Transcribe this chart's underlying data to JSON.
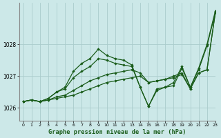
{
  "background_color": "#cce8e8",
  "grid_color": "#aacccc",
  "line_color": "#1a5c1a",
  "title": "Graphe pression niveau de la mer (hPa)",
  "xlim": [
    -0.5,
    23
  ],
  "ylim": [
    1025.6,
    1029.3
  ],
  "yticks": [
    1026,
    1027,
    1028
  ],
  "xticks": [
    0,
    1,
    2,
    3,
    4,
    5,
    6,
    7,
    8,
    9,
    10,
    11,
    12,
    13,
    14,
    15,
    16,
    17,
    18,
    19,
    20,
    21,
    22,
    23
  ],
  "series": [
    {
      "x": [
        0,
        1,
        2,
        3,
        4,
        5,
        6,
        7,
        8,
        9,
        10,
        11,
        12,
        13,
        14,
        15,
        16,
        17,
        18,
        19,
        20,
        21,
        22,
        23
      ],
      "y": [
        1026.2,
        1026.25,
        1026.2,
        1026.25,
        1026.3,
        1026.35,
        1026.4,
        1026.5,
        1026.6,
        1026.7,
        1026.8,
        1026.85,
        1026.9,
        1026.95,
        1027.0,
        1026.8,
        1026.85,
        1026.9,
        1026.95,
        1027.05,
        1026.6,
        1027.1,
        1027.2,
        1029.0
      ]
    },
    {
      "x": [
        0,
        1,
        2,
        3,
        4,
        5,
        6,
        7,
        8,
        9,
        10,
        11,
        12,
        13,
        14,
        15,
        16,
        17,
        18,
        19,
        20,
        21,
        22,
        23
      ],
      "y": [
        1026.2,
        1026.25,
        1026.2,
        1026.25,
        1026.35,
        1026.4,
        1026.55,
        1026.7,
        1026.85,
        1026.95,
        1027.05,
        1027.1,
        1027.15,
        1027.2,
        1027.1,
        1026.8,
        1026.85,
        1026.9,
        1027.0,
        1027.1,
        1026.6,
        1027.1,
        1027.2,
        1029.0
      ]
    },
    {
      "x": [
        0,
        1,
        2,
        3,
        4,
        5,
        6,
        7,
        8,
        9,
        10,
        11,
        12,
        13,
        14,
        15,
        16,
        17,
        18,
        19,
        20,
        21,
        22,
        23
      ],
      "y": [
        1026.2,
        1026.25,
        1026.2,
        1026.3,
        1026.5,
        1026.6,
        1026.95,
        1027.15,
        1027.3,
        1027.55,
        1027.5,
        1027.4,
        1027.35,
        1027.3,
        1026.65,
        1026.05,
        1026.55,
        1026.65,
        1026.7,
        1027.25,
        1026.65,
        1027.2,
        1027.95,
        1029.0
      ]
    },
    {
      "x": [
        0,
        1,
        2,
        3,
        4,
        5,
        6,
        7,
        8,
        9,
        10,
        11,
        12,
        13,
        14,
        15,
        16,
        17,
        18,
        19,
        20,
        21,
        22,
        23
      ],
      "y": [
        1026.2,
        1026.25,
        1026.2,
        1026.3,
        1026.5,
        1026.65,
        1027.15,
        1027.4,
        1027.55,
        1027.85,
        1027.65,
        1027.55,
        1027.5,
        1027.35,
        1026.65,
        1026.05,
        1026.6,
        1026.65,
        1026.8,
        1027.3,
        1026.65,
        1027.25,
        1028.0,
        1029.05
      ]
    }
  ]
}
